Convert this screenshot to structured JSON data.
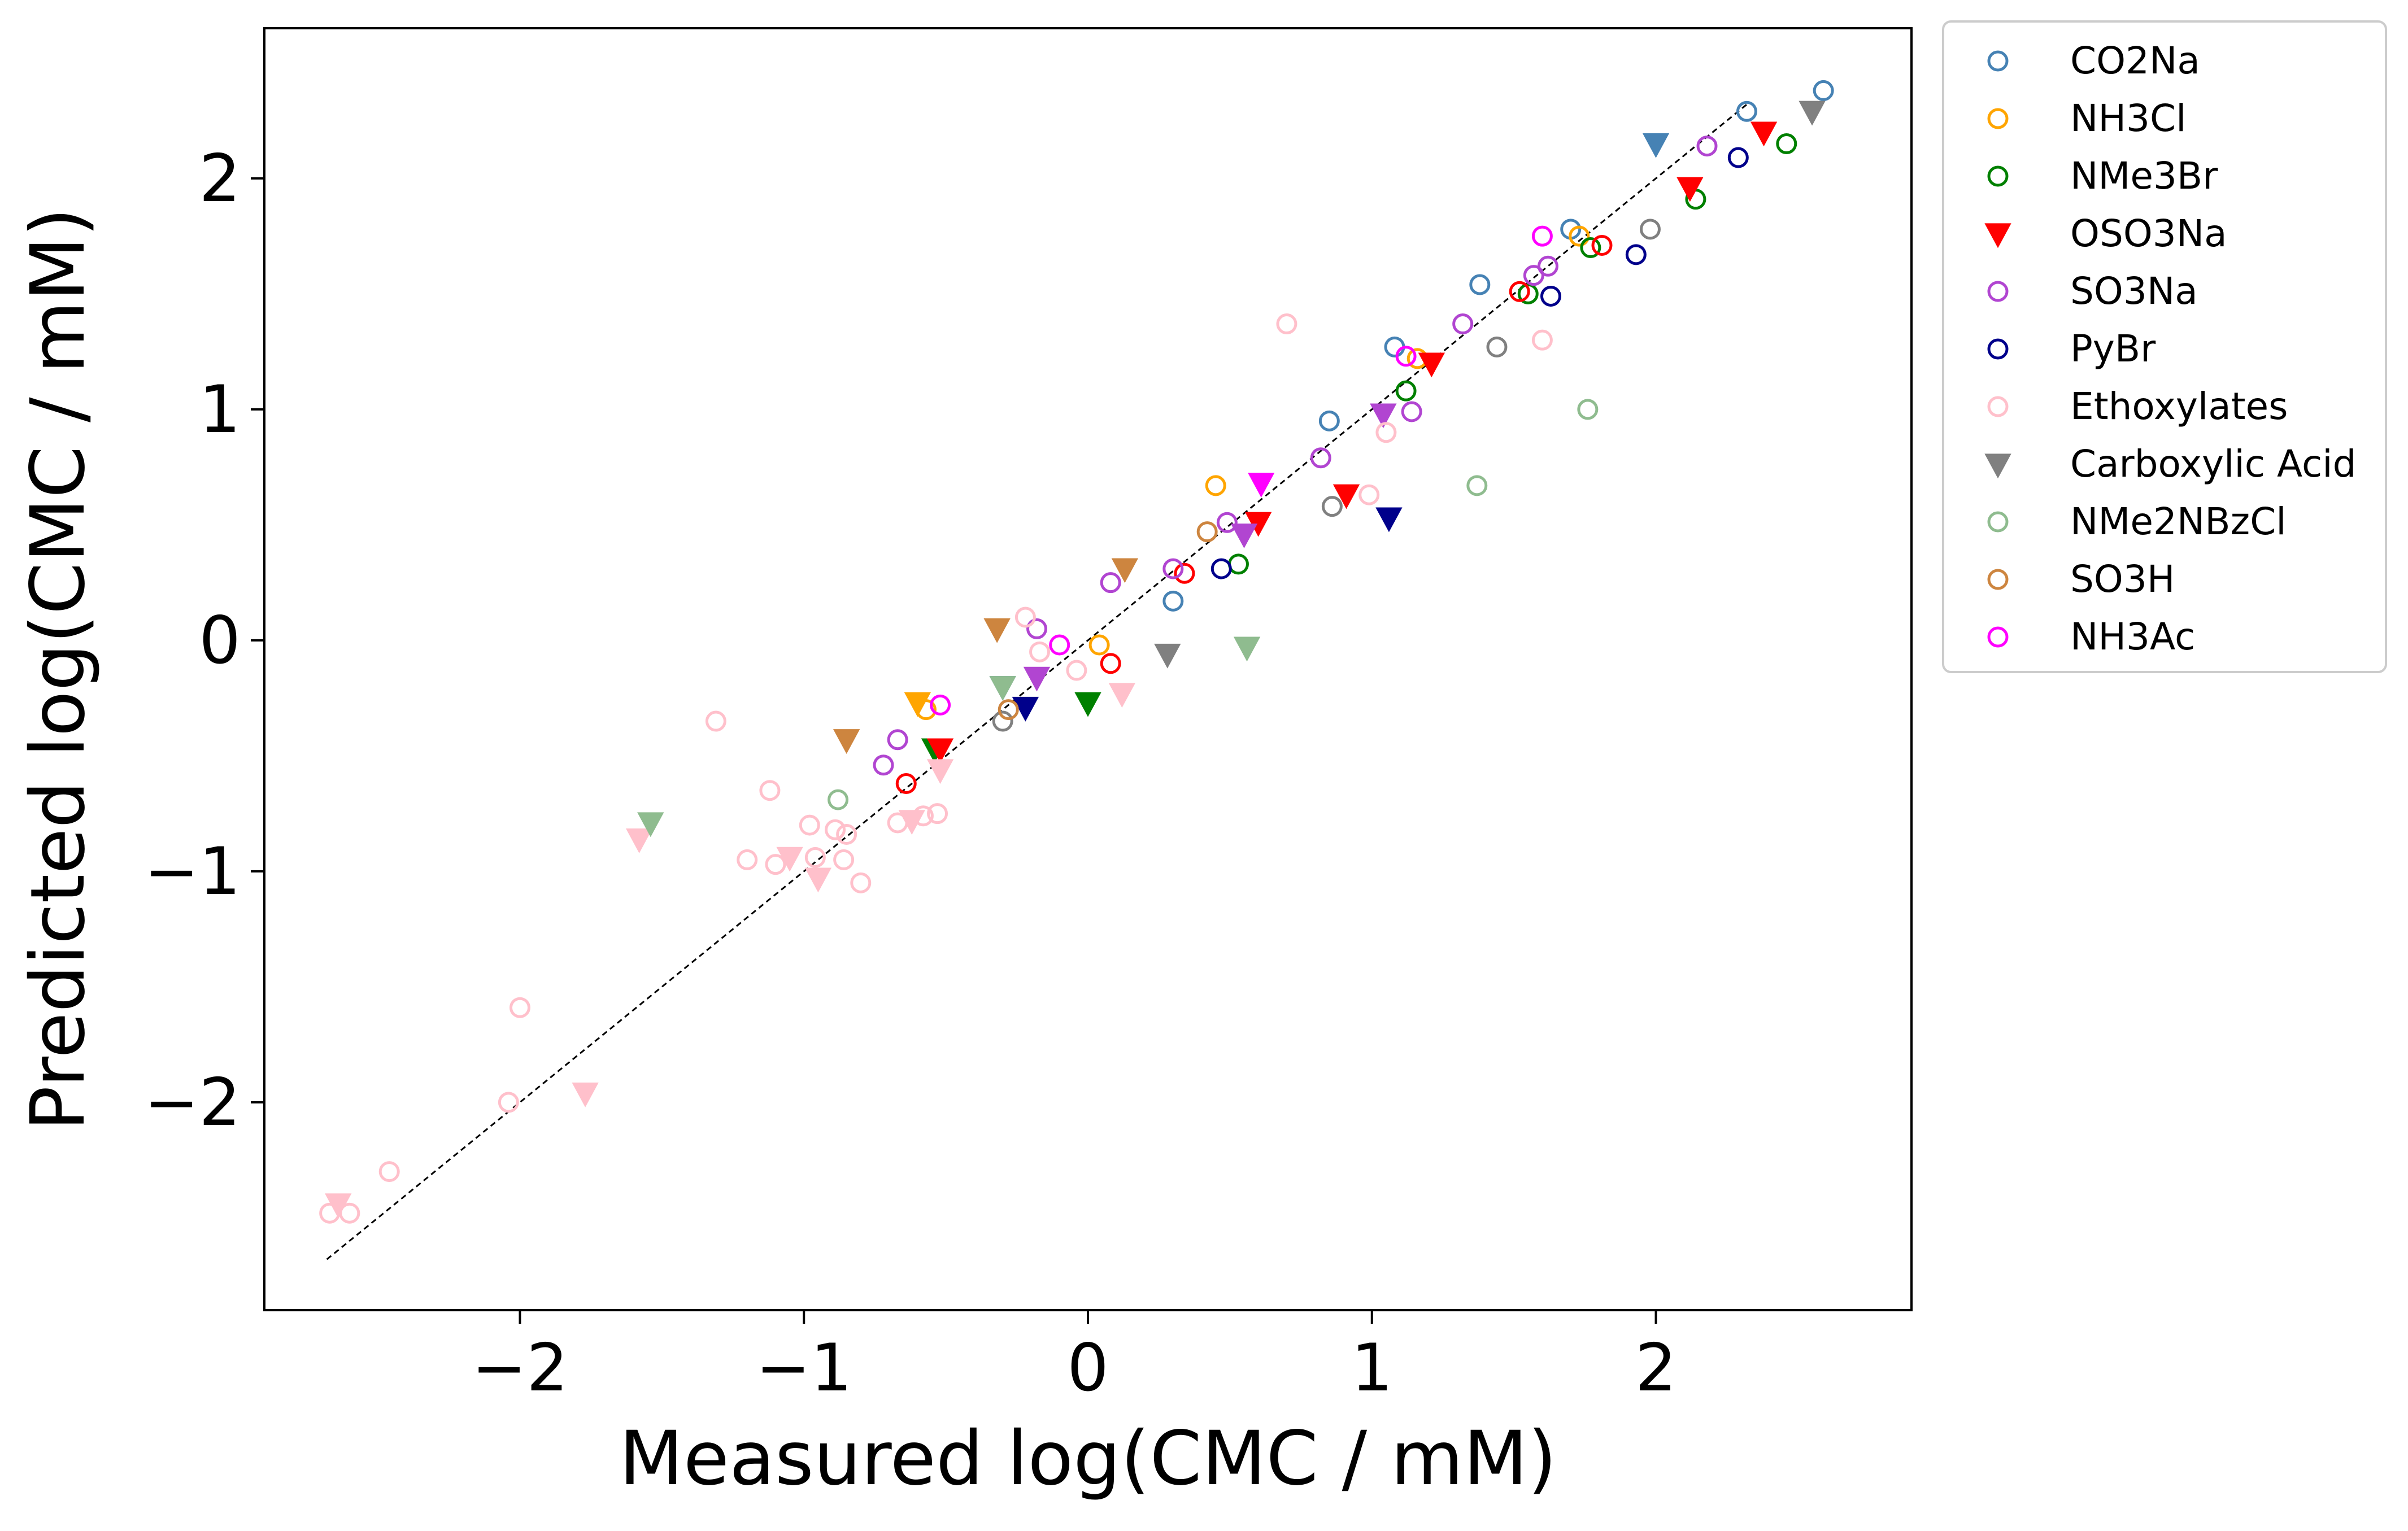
{
  "chart_data": {
    "type": "scatter",
    "xlabel": "Measured log(CMC / mM)",
    "ylabel": "Predicted log(CMC / mM)",
    "xlim": [
      -2.9,
      2.9
    ],
    "ylim": [
      -2.9,
      2.65
    ],
    "x_ticks": [
      -2,
      -1,
      0,
      1,
      2
    ],
    "y_ticks": [
      -2,
      -1,
      0,
      1,
      2
    ],
    "x_tick_labels": [
      "−2",
      "−1",
      "0",
      "1",
      "2"
    ],
    "y_tick_labels": [
      "−2",
      "−1",
      "0",
      "1",
      "2"
    ],
    "grid": false,
    "legend_position": "outside-top-right",
    "reference_line": {
      "x": [
        -2.68,
        2.33
      ],
      "y": [
        -2.68,
        2.33
      ],
      "style": "dashed",
      "color": "#000000"
    },
    "series": [
      {
        "name": "CO2Na",
        "color": "#4682b4",
        "marker": "circle-open",
        "points": [
          [
            2.59,
            2.38
          ],
          [
            2.32,
            2.29
          ],
          [
            1.7,
            1.78
          ],
          [
            1.38,
            1.54
          ],
          [
            1.08,
            1.27
          ],
          [
            0.85,
            0.95
          ],
          [
            0.3,
            0.17
          ]
        ]
      },
      {
        "name": "CO2Na",
        "color": "#4682b4",
        "marker": "triangle-down-filled",
        "legend": false,
        "points": [
          [
            2.0,
            2.15
          ],
          [
            -0.3,
            -0.2
          ]
        ]
      },
      {
        "name": "NH3Cl",
        "color": "#ffa500",
        "marker": "circle-open",
        "points": [
          [
            1.73,
            1.75
          ],
          [
            1.16,
            1.22
          ],
          [
            0.45,
            0.67
          ],
          [
            0.04,
            -0.02
          ],
          [
            -0.57,
            -0.3
          ]
        ]
      },
      {
        "name": "NH3Cl",
        "color": "#ffa500",
        "marker": "triangle-down-filled",
        "legend": false,
        "points": [
          [
            -0.6,
            -0.27
          ]
        ]
      },
      {
        "name": "NMe3Br",
        "color": "#008000",
        "marker": "circle-open",
        "points": [
          [
            2.46,
            2.15
          ],
          [
            2.14,
            1.91
          ],
          [
            1.77,
            1.7
          ],
          [
            1.55,
            1.5
          ],
          [
            1.12,
            1.08
          ],
          [
            0.53,
            0.33
          ]
        ]
      },
      {
        "name": "NMe3Br",
        "color": "#008000",
        "marker": "triangle-down-filled",
        "legend": false,
        "points": [
          [
            0.0,
            -0.27
          ],
          [
            -0.54,
            -0.47
          ]
        ]
      },
      {
        "name": "OSO3Na",
        "color": "#ff0000",
        "marker": "circle-open",
        "points": [
          [
            1.81,
            1.71
          ],
          [
            1.52,
            1.51
          ],
          [
            0.34,
            0.29
          ],
          [
            0.08,
            -0.1
          ],
          [
            -0.64,
            -0.62
          ]
        ]
      },
      {
        "name": "OSO3Na",
        "color": "#ff0000",
        "marker": "triangle-down-filled",
        "legend": true,
        "points": [
          [
            2.38,
            2.2
          ],
          [
            2.12,
            1.96
          ],
          [
            1.21,
            1.2
          ],
          [
            0.91,
            0.63
          ],
          [
            0.6,
            0.51
          ],
          [
            -0.52,
            -0.47
          ]
        ]
      },
      {
        "name": "SO3Na",
        "color": "#b145d1",
        "marker": "circle-open",
        "points": [
          [
            2.18,
            2.14
          ],
          [
            1.62,
            1.62
          ],
          [
            1.57,
            1.58
          ],
          [
            1.32,
            1.37
          ],
          [
            1.14,
            0.99
          ],
          [
            0.82,
            0.79
          ],
          [
            0.49,
            0.51
          ],
          [
            0.3,
            0.31
          ],
          [
            0.08,
            0.25
          ],
          [
            -0.18,
            0.05
          ],
          [
            -0.67,
            -0.43
          ],
          [
            -0.72,
            -0.54
          ]
        ]
      },
      {
        "name": "SO3Na",
        "color": "#b145d1",
        "marker": "triangle-down-filled",
        "legend": false,
        "points": [
          [
            1.04,
            0.98
          ],
          [
            0.55,
            0.46
          ],
          [
            -0.18,
            -0.16
          ]
        ]
      },
      {
        "name": "PyBr",
        "color": "#00008b",
        "marker": "circle-open",
        "points": [
          [
            2.29,
            2.09
          ],
          [
            1.93,
            1.67
          ],
          [
            1.63,
            1.49
          ],
          [
            0.47,
            0.31
          ]
        ]
      },
      {
        "name": "PyBr",
        "color": "#00008b",
        "marker": "triangle-down-filled",
        "legend": false,
        "points": [
          [
            1.06,
            0.53
          ],
          [
            -0.22,
            -0.29
          ]
        ]
      },
      {
        "name": "Ethoxylates",
        "color": "#ffc0cb",
        "marker": "circle-open",
        "points": [
          [
            0.7,
            1.37
          ],
          [
            1.6,
            1.3
          ],
          [
            1.05,
            0.9
          ],
          [
            0.99,
            0.63
          ],
          [
            -0.22,
            0.1
          ],
          [
            -0.17,
            -0.05
          ],
          [
            -0.04,
            -0.13
          ],
          [
            -1.31,
            -0.35
          ],
          [
            -1.12,
            -0.65
          ],
          [
            -0.98,
            -0.8
          ],
          [
            -0.89,
            -0.82
          ],
          [
            -0.85,
            -0.84
          ],
          [
            -0.67,
            -0.79
          ],
          [
            -0.58,
            -0.76
          ],
          [
            -0.53,
            -0.75
          ],
          [
            -1.2,
            -0.95
          ],
          [
            -1.1,
            -0.97
          ],
          [
            -0.96,
            -0.94
          ],
          [
            -0.86,
            -0.95
          ],
          [
            -0.8,
            -1.05
          ],
          [
            -2.0,
            -1.59
          ],
          [
            -2.04,
            -2.0
          ],
          [
            -2.46,
            -2.3
          ],
          [
            -2.67,
            -2.48
          ],
          [
            -2.6,
            -2.48
          ]
        ]
      },
      {
        "name": "Ethoxylates",
        "color": "#ffc0cb",
        "marker": "triangle-down-filled",
        "legend": false,
        "points": [
          [
            0.12,
            -0.23
          ],
          [
            -0.52,
            -0.56
          ],
          [
            -0.62,
            -0.78
          ],
          [
            -1.05,
            -0.94
          ],
          [
            -0.95,
            -1.03
          ],
          [
            -1.58,
            -0.86
          ],
          [
            -1.77,
            -1.96
          ],
          [
            -2.64,
            -2.44
          ]
        ]
      },
      {
        "name": "Carboxylic Acid",
        "color": "#808080",
        "marker": "circle-open",
        "points": [
          [
            1.98,
            1.78
          ],
          [
            1.44,
            1.27
          ],
          [
            0.86,
            0.58
          ],
          [
            -0.3,
            -0.35
          ]
        ]
      },
      {
        "name": "Carboxylic Acid",
        "color": "#808080",
        "marker": "triangle-down-filled",
        "legend": true,
        "points": [
          [
            2.55,
            2.29
          ],
          [
            0.28,
            -0.06
          ]
        ]
      },
      {
        "name": "NMe2NBzCl",
        "color": "#8fbc8f",
        "marker": "circle-open",
        "points": [
          [
            1.76,
            1.0
          ],
          [
            1.37,
            0.67
          ],
          [
            -0.88,
            -0.69
          ]
        ]
      },
      {
        "name": "NMe2NBzCl",
        "color": "#8fbc8f",
        "marker": "triangle-down-filled",
        "legend": false,
        "points": [
          [
            0.56,
            -0.03
          ],
          [
            -0.3,
            -0.2
          ],
          [
            -1.54,
            -0.79
          ]
        ]
      },
      {
        "name": "SO3H",
        "color": "#cd853f",
        "marker": "circle-open",
        "points": [
          [
            0.42,
            0.47
          ],
          [
            -0.28,
            -0.3
          ]
        ]
      },
      {
        "name": "SO3H",
        "color": "#cd853f",
        "marker": "triangle-down-filled",
        "legend": false,
        "points": [
          [
            0.13,
            0.31
          ],
          [
            -0.32,
            0.05
          ],
          [
            -0.85,
            -0.43
          ]
        ]
      },
      {
        "name": "NH3Ac",
        "color": "#ff00ff",
        "marker": "circle-open",
        "points": [
          [
            1.6,
            1.75
          ],
          [
            1.12,
            1.23
          ],
          [
            -0.1,
            -0.02
          ],
          [
            -0.52,
            -0.28
          ]
        ]
      },
      {
        "name": "NH3Ac",
        "color": "#ff00ff",
        "marker": "triangle-down-filled",
        "legend": false,
        "points": [
          [
            0.61,
            0.68
          ]
        ]
      }
    ],
    "legend": [
      {
        "label": "CO2Na",
        "color": "#4682b4",
        "marker": "circle-open"
      },
      {
        "label": "NH3Cl",
        "color": "#ffa500",
        "marker": "circle-open"
      },
      {
        "label": "NMe3Br",
        "color": "#008000",
        "marker": "circle-open"
      },
      {
        "label": "OSO3Na",
        "color": "#ff0000",
        "marker": "triangle-down-filled"
      },
      {
        "label": "SO3Na",
        "color": "#b145d1",
        "marker": "circle-open"
      },
      {
        "label": "PyBr",
        "color": "#00008b",
        "marker": "circle-open"
      },
      {
        "label": "Ethoxylates",
        "color": "#ffc0cb",
        "marker": "circle-open"
      },
      {
        "label": "Carboxylic Acid",
        "color": "#808080",
        "marker": "triangle-down-filled"
      },
      {
        "label": "NMe2NBzCl",
        "color": "#8fbc8f",
        "marker": "circle-open"
      },
      {
        "label": "SO3H",
        "color": "#cd853f",
        "marker": "circle-open"
      },
      {
        "label": "NH3Ac",
        "color": "#ff00ff",
        "marker": "circle-open"
      }
    ]
  }
}
